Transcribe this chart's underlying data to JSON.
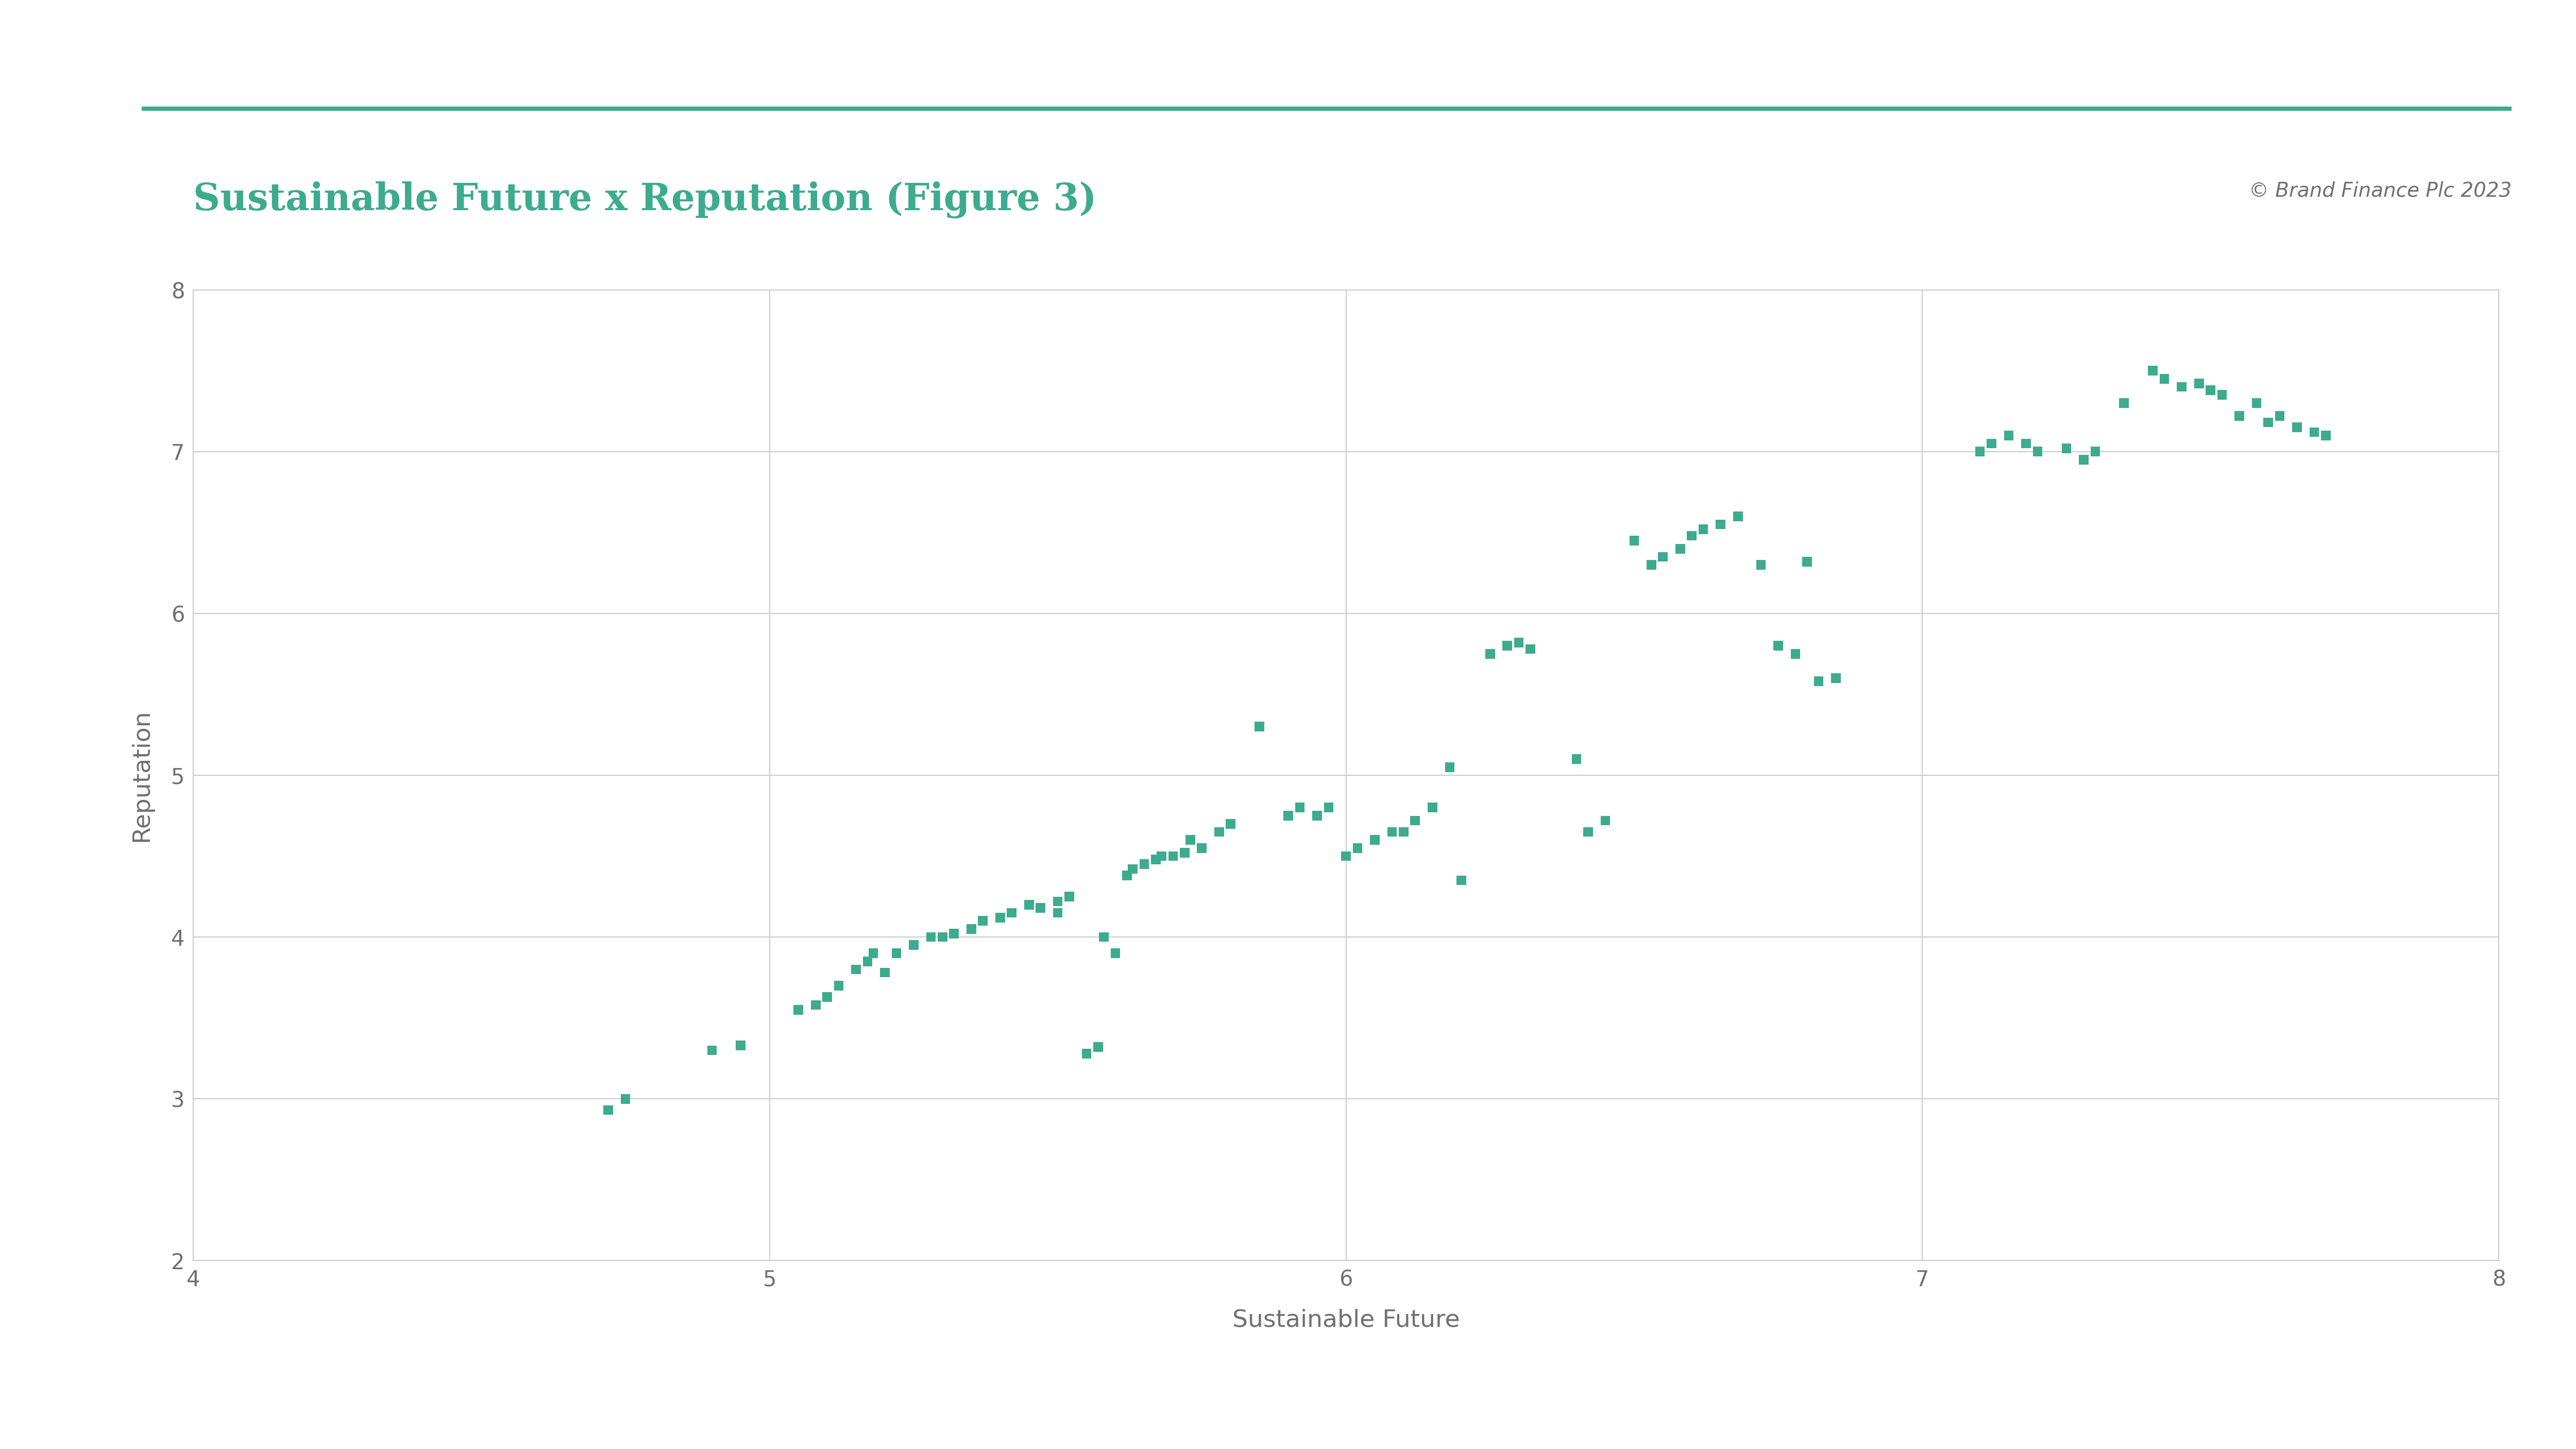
{
  "title": "Sustainable Future x Reputation (Figure 3)",
  "copyright": "© Brand Finance Plc 2023",
  "xlabel": "Sustainable Future",
  "ylabel": "Reputation",
  "xlim": [
    4,
    8
  ],
  "ylim": [
    2,
    8
  ],
  "xticks": [
    4,
    5,
    6,
    7,
    8
  ],
  "yticks": [
    2,
    3,
    4,
    5,
    6,
    7,
    8
  ],
  "marker_color": "#3dab8e",
  "marker_size": 180,
  "title_color": "#3dab8e",
  "title_fontsize": 52,
  "copyright_fontsize": 28,
  "axis_label_fontsize": 34,
  "tick_fontsize": 30,
  "background_color": "#ffffff",
  "grid_color": "#cccccc",
  "tick_label_color": "#707070",
  "axis_label_color": "#707070",
  "header_line_color": "#3dab8e",
  "points": [
    [
      4.72,
      2.93
    ],
    [
      4.75,
      3.0
    ],
    [
      4.9,
      3.3
    ],
    [
      4.95,
      3.33
    ],
    [
      5.05,
      3.55
    ],
    [
      5.08,
      3.58
    ],
    [
      5.1,
      3.63
    ],
    [
      5.12,
      3.7
    ],
    [
      5.15,
      3.8
    ],
    [
      5.17,
      3.85
    ],
    [
      5.18,
      3.9
    ],
    [
      5.2,
      3.78
    ],
    [
      5.22,
      3.9
    ],
    [
      5.25,
      3.95
    ],
    [
      5.28,
      4.0
    ],
    [
      5.3,
      4.0
    ],
    [
      5.32,
      4.02
    ],
    [
      5.35,
      4.05
    ],
    [
      5.37,
      4.1
    ],
    [
      5.4,
      4.12
    ],
    [
      5.42,
      4.15
    ],
    [
      5.45,
      4.2
    ],
    [
      5.47,
      4.18
    ],
    [
      5.5,
      4.15
    ],
    [
      5.5,
      4.22
    ],
    [
      5.52,
      4.25
    ],
    [
      5.55,
      3.28
    ],
    [
      5.57,
      3.32
    ],
    [
      5.58,
      4.0
    ],
    [
      5.6,
      3.9
    ],
    [
      5.62,
      4.38
    ],
    [
      5.63,
      4.42
    ],
    [
      5.65,
      4.45
    ],
    [
      5.67,
      4.48
    ],
    [
      5.68,
      4.5
    ],
    [
      5.7,
      4.5
    ],
    [
      5.72,
      4.52
    ],
    [
      5.73,
      4.6
    ],
    [
      5.75,
      4.55
    ],
    [
      5.78,
      4.65
    ],
    [
      5.8,
      4.7
    ],
    [
      5.85,
      5.3
    ],
    [
      5.9,
      4.75
    ],
    [
      5.92,
      4.8
    ],
    [
      5.95,
      4.75
    ],
    [
      5.97,
      4.8
    ],
    [
      6.0,
      4.5
    ],
    [
      6.02,
      4.55
    ],
    [
      6.05,
      4.6
    ],
    [
      6.08,
      4.65
    ],
    [
      6.1,
      4.65
    ],
    [
      6.12,
      4.72
    ],
    [
      6.15,
      4.8
    ],
    [
      6.18,
      5.05
    ],
    [
      6.2,
      4.35
    ],
    [
      6.25,
      5.75
    ],
    [
      6.28,
      5.8
    ],
    [
      6.3,
      5.82
    ],
    [
      6.32,
      5.78
    ],
    [
      6.4,
      5.1
    ],
    [
      6.42,
      4.65
    ],
    [
      6.45,
      4.72
    ],
    [
      6.5,
      6.45
    ],
    [
      6.53,
      6.3
    ],
    [
      6.55,
      6.35
    ],
    [
      6.58,
      6.4
    ],
    [
      6.6,
      6.48
    ],
    [
      6.62,
      6.52
    ],
    [
      6.65,
      6.55
    ],
    [
      6.68,
      6.6
    ],
    [
      6.72,
      6.3
    ],
    [
      6.75,
      5.8
    ],
    [
      6.78,
      5.75
    ],
    [
      6.8,
      6.32
    ],
    [
      6.82,
      5.58
    ],
    [
      6.85,
      5.6
    ],
    [
      7.1,
      7.0
    ],
    [
      7.12,
      7.05
    ],
    [
      7.15,
      7.1
    ],
    [
      7.18,
      7.05
    ],
    [
      7.2,
      7.0
    ],
    [
      7.25,
      7.02
    ],
    [
      7.28,
      6.95
    ],
    [
      7.3,
      7.0
    ],
    [
      7.35,
      7.3
    ],
    [
      7.4,
      7.5
    ],
    [
      7.42,
      7.45
    ],
    [
      7.45,
      7.4
    ],
    [
      7.48,
      7.42
    ],
    [
      7.5,
      7.38
    ],
    [
      7.52,
      7.35
    ],
    [
      7.55,
      7.22
    ],
    [
      7.58,
      7.3
    ],
    [
      7.6,
      7.18
    ],
    [
      7.62,
      7.22
    ],
    [
      7.65,
      7.15
    ],
    [
      7.68,
      7.12
    ],
    [
      7.7,
      7.1
    ]
  ]
}
